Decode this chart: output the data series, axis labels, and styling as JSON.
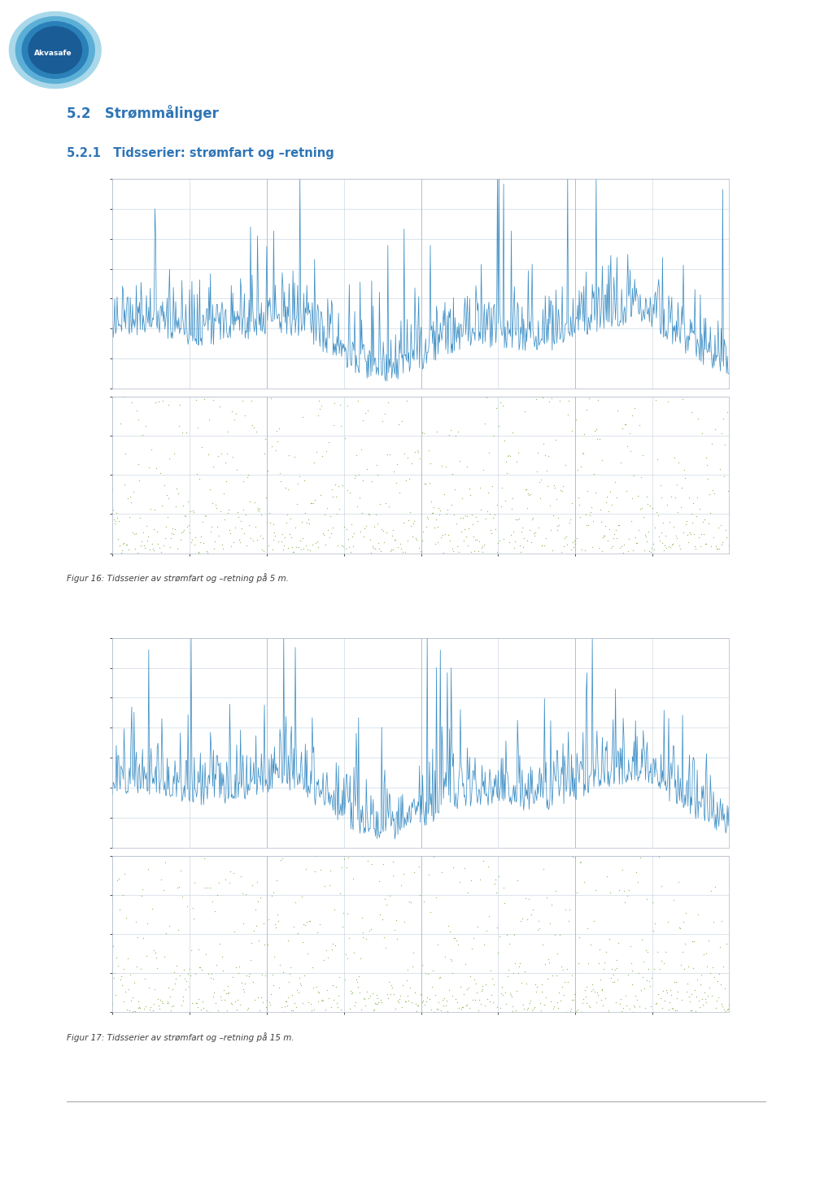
{
  "page_width": 10.24,
  "page_height": 14.48,
  "bg_color": "#ffffff",
  "logo_text": "Akvasafe",
  "heading1": "5.2   Strømmålinger",
  "heading2": "5.2.1   Tidsserier: strømfart og –retning",
  "caption1": "Figur 16: Tidsserier av strømfart og –retning på 5 m.",
  "caption2": "Figur 17: Tidsserier av strømfart og –retning på 15 m.",
  "heading_color": "#2E75B6",
  "caption_color": "#404040",
  "blue_line_color": "#2E86C1",
  "green_dot_color": "#76A832",
  "chart_bg": "#ffffff",
  "grid_color": "#c8d4e0",
  "n_points": 800,
  "seed1": 42,
  "seed2": 77,
  "ylim_speed": [
    0,
    0.7
  ],
  "ylim_dir": [
    0,
    360
  ],
  "yticks_speed_labels": [
    "",
    "",
    "",
    "",
    ""
  ],
  "yticks_dir_labels": [
    "",
    "",
    "",
    "",
    ""
  ]
}
